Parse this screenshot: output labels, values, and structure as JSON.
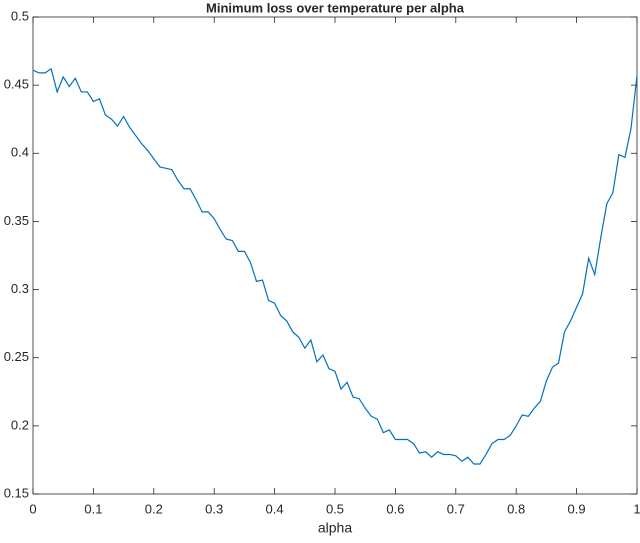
{
  "chart_data": {
    "type": "line",
    "title": "Minimum loss over temperature per alpha",
    "x_label": "alpha",
    "x": [
      0,
      0.01,
      0.02,
      0.03,
      0.04,
      0.05,
      0.06,
      0.07,
      0.08,
      0.09,
      0.1,
      0.11,
      0.12,
      0.13,
      0.14,
      0.15,
      0.16,
      0.17,
      0.18,
      0.19,
      0.2,
      0.21,
      0.22,
      0.23,
      0.24,
      0.25,
      0.26,
      0.27,
      0.28,
      0.29,
      0.3,
      0.31,
      0.32,
      0.33,
      0.34,
      0.35,
      0.36,
      0.37,
      0.38,
      0.39,
      0.4,
      0.41,
      0.42,
      0.43,
      0.44,
      0.45,
      0.46,
      0.47,
      0.48,
      0.49,
      0.5,
      0.51,
      0.52,
      0.53,
      0.54,
      0.55,
      0.56,
      0.57,
      0.58,
      0.59,
      0.6,
      0.61,
      0.62,
      0.63,
      0.64,
      0.65,
      0.66,
      0.67,
      0.68,
      0.69,
      0.7,
      0.71,
      0.72,
      0.73,
      0.74,
      0.75,
      0.76,
      0.77,
      0.78,
      0.79,
      0.8,
      0.81,
      0.82,
      0.83,
      0.84,
      0.85,
      0.86,
      0.87,
      0.88,
      0.89,
      0.9,
      0.91,
      0.92,
      0.93,
      0.94,
      0.95,
      0.96,
      0.97,
      0.98,
      0.99,
      1
    ],
    "series": [
      {
        "color": "#0072bd",
        "values": [
          0.461,
          0.459,
          0.459,
          0.462,
          0.445,
          0.456,
          0.449,
          0.455,
          0.445,
          0.445,
          0.438,
          0.44,
          0.428,
          0.425,
          0.42,
          0.427,
          0.419,
          0.413,
          0.407,
          0.402,
          0.396,
          0.39,
          0.389,
          0.388,
          0.38,
          0.374,
          0.374,
          0.366,
          0.357,
          0.357,
          0.352,
          0.344,
          0.337,
          0.336,
          0.328,
          0.328,
          0.32,
          0.306,
          0.307,
          0.292,
          0.29,
          0.281,
          0.277,
          0.269,
          0.265,
          0.257,
          0.263,
          0.247,
          0.252,
          0.242,
          0.24,
          0.227,
          0.232,
          0.221,
          0.22,
          0.213,
          0.207,
          0.205,
          0.195,
          0.197,
          0.19,
          0.19,
          0.19,
          0.187,
          0.18,
          0.181,
          0.177,
          0.181,
          0.179,
          0.179,
          0.178,
          0.174,
          0.177,
          0.172,
          0.172,
          0.179,
          0.187,
          0.19,
          0.19,
          0.193,
          0.2,
          0.208,
          0.207,
          0.213,
          0.218,
          0.233,
          0.243,
          0.246,
          0.269,
          0.277,
          0.287,
          0.297,
          0.323,
          0.311,
          0.338,
          0.363,
          0.371,
          0.399,
          0.397,
          0.418,
          0.457
        ]
      }
    ],
    "xlim": [
      0,
      1
    ],
    "xticks": [
      0,
      0.1,
      0.2,
      0.3,
      0.4,
      0.5,
      0.6,
      0.7,
      0.8,
      0.9,
      1
    ],
    "ylim": [
      0.15,
      0.5
    ],
    "yticks": [
      0.15,
      0.2,
      0.25,
      0.3,
      0.35,
      0.4,
      0.45,
      0.5
    ]
  }
}
